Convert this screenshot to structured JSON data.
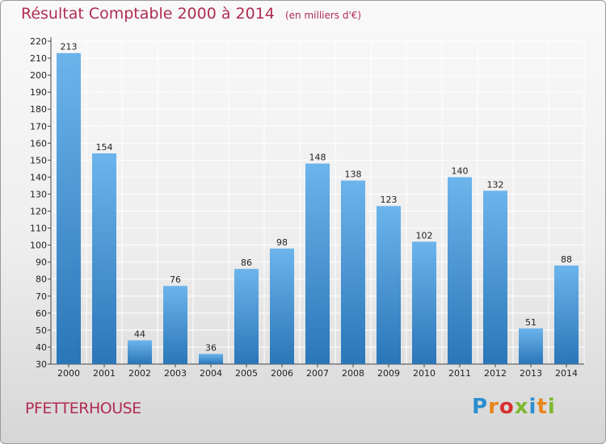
{
  "header": {
    "title": "Résultat Comptable 2000 à 2014",
    "subtitle": "(en milliers d'€)"
  },
  "footer": {
    "commune": "PFETTERHOUSE",
    "logo_text": "Proxiti",
    "logo_colors": [
      "#2a8fd1",
      "#e8861b",
      "#d6302f",
      "#7db82e",
      "#2a8fd1",
      "#e8861b",
      "#7db82e"
    ]
  },
  "colors": {
    "title": "#b02c52",
    "bar_top": "#6cb4ec",
    "bar_bottom": "#2a76b8",
    "grid": "#ffffff"
  },
  "chart_data": {
    "type": "bar",
    "title": "Résultat Comptable 2000 à 2014",
    "categories": [
      "2000",
      "2001",
      "2002",
      "2003",
      "2004",
      "2005",
      "2006",
      "2007",
      "2008",
      "2009",
      "2010",
      "2011",
      "2012",
      "2013",
      "2014"
    ],
    "values": [
      213,
      154,
      44,
      76,
      36,
      86,
      98,
      148,
      138,
      123,
      102,
      140,
      132,
      51,
      88
    ],
    "ylim": [
      30,
      220
    ],
    "ytick_step": 10,
    "grid": true,
    "xlabel": "",
    "ylabel": ""
  }
}
